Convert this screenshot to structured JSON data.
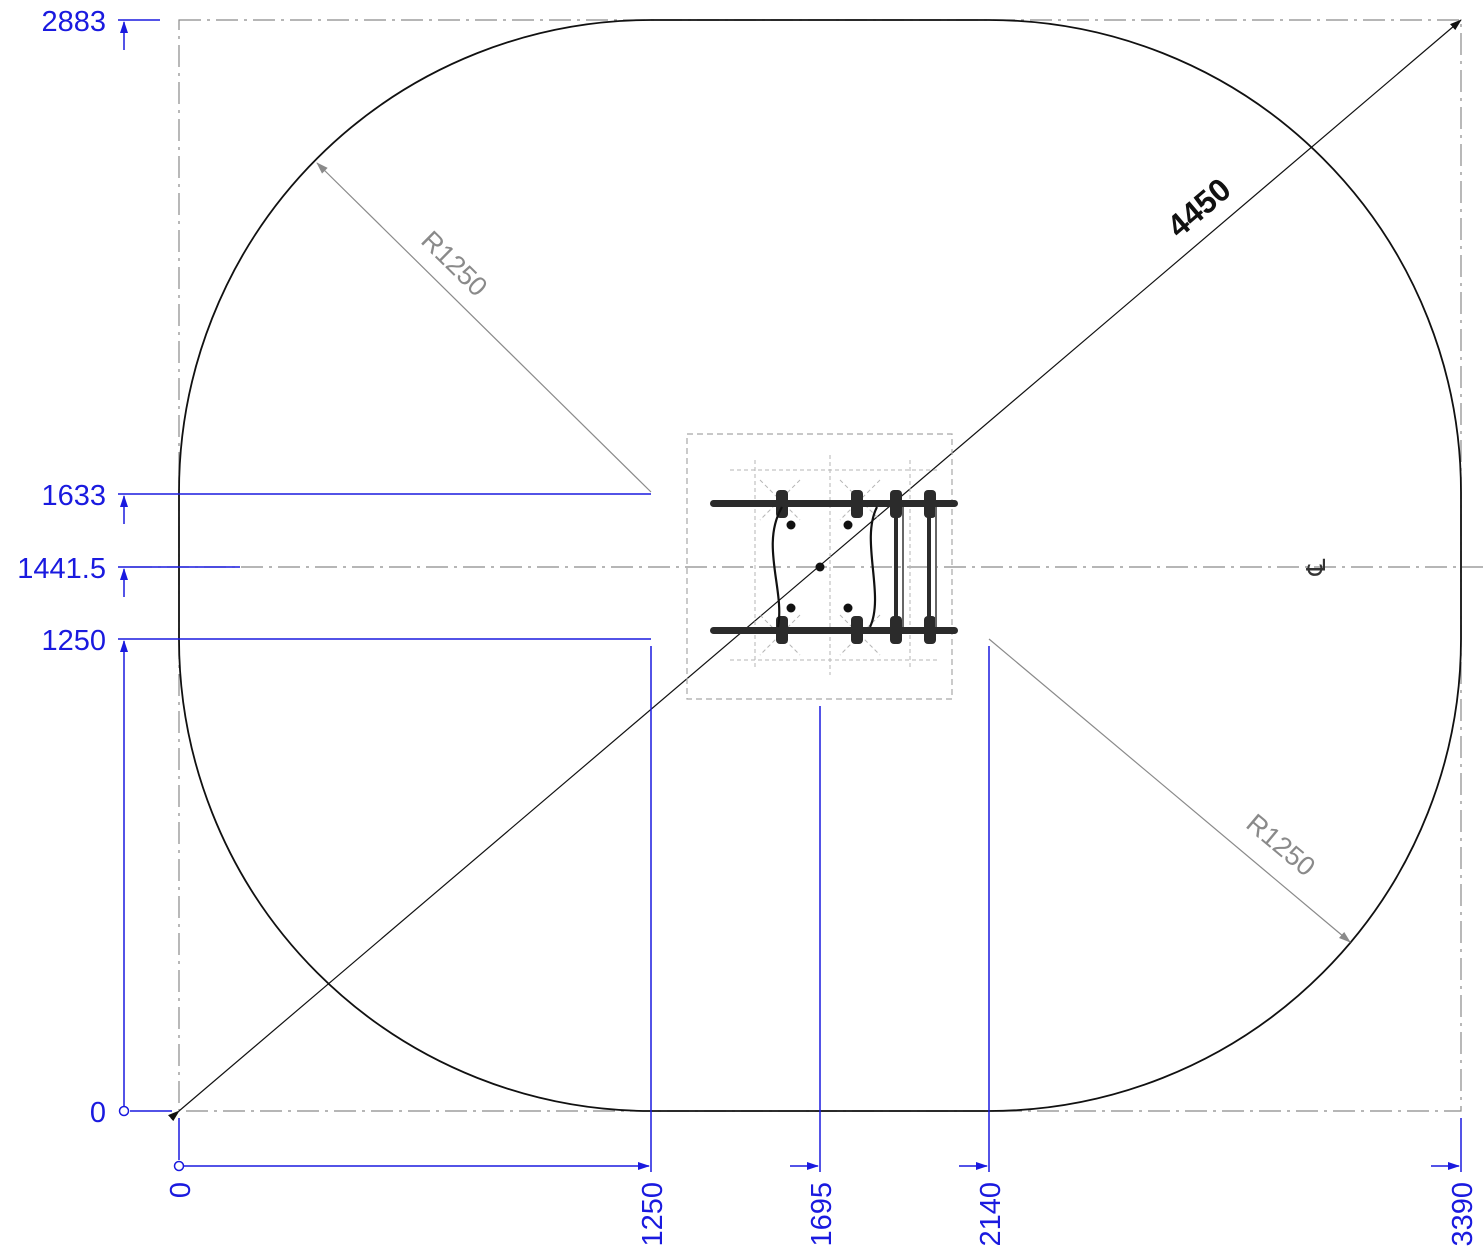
{
  "colors": {
    "dimension": "#1a1adf",
    "outline": "#111111",
    "construction": "#8a8a8a",
    "equipment": "#222222"
  },
  "vertical_dimensions": [
    {
      "label": "2883"
    },
    {
      "label": "1633"
    },
    {
      "label": "1441.5"
    },
    {
      "label": "1250"
    },
    {
      "label": "0"
    }
  ],
  "horizontal_dimensions": [
    {
      "label": "0"
    },
    {
      "label": "1250"
    },
    {
      "label": "1695"
    },
    {
      "label": "2140"
    },
    {
      "label": "3390"
    }
  ],
  "radius_labels": {
    "top_left": "R1250",
    "bottom_right": "R1250"
  },
  "diagonal_label": "4450",
  "centerline_symbol": "℄"
}
